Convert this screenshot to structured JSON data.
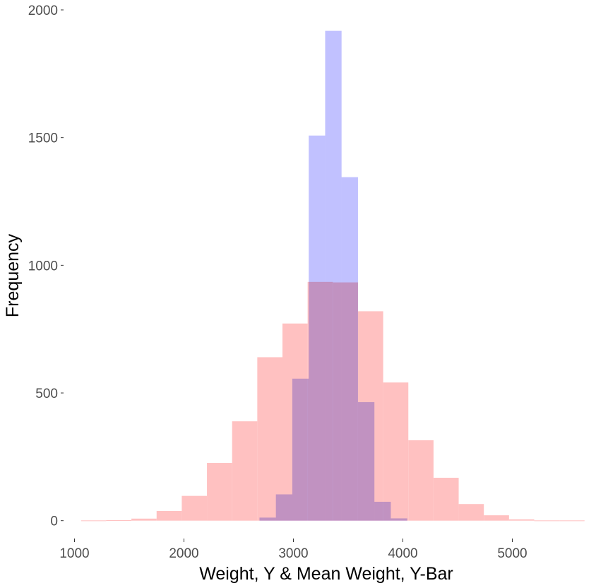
{
  "chart_data": {
    "type": "bar",
    "title": "",
    "xlabel": "Weight, Y & Mean Weight, Y-Bar",
    "ylabel": "Frequency",
    "xlim": [
      900,
      5700
    ],
    "ylim": [
      -70,
      2000
    ],
    "x_ticks": [
      1000,
      2000,
      3000,
      4000,
      5000
    ],
    "x_tick_labels": [
      "1000",
      "2000",
      "3000",
      "4000",
      "5000"
    ],
    "y_ticks": [
      0,
      500,
      1000,
      1500,
      2000
    ],
    "y_tick_labels": [
      "0",
      "500",
      "1000",
      "1500",
      "2000"
    ],
    "grid": false,
    "legend": "none",
    "series": [
      {
        "color": "#ffc1c1",
        "bins": [
          {
            "x0": 1060,
            "x1": 1290,
            "value": 1
          },
          {
            "x0": 1290,
            "x1": 1520,
            "value": 2
          },
          {
            "x0": 1520,
            "x1": 1750,
            "value": 8
          },
          {
            "x0": 1750,
            "x1": 1980,
            "value": 38
          },
          {
            "x0": 1980,
            "x1": 2210,
            "value": 97
          },
          {
            "x0": 2210,
            "x1": 2440,
            "value": 226
          },
          {
            "x0": 2440,
            "x1": 2670,
            "value": 389
          },
          {
            "x0": 2670,
            "x1": 2900,
            "value": 640
          },
          {
            "x0": 2900,
            "x1": 3130,
            "value": 772
          },
          {
            "x0": 3130,
            "x1": 3360,
            "value": 935
          },
          {
            "x0": 3360,
            "x1": 3590,
            "value": 933
          },
          {
            "x0": 3590,
            "x1": 3820,
            "value": 820
          },
          {
            "x0": 3820,
            "x1": 4050,
            "value": 541
          },
          {
            "x0": 4050,
            "x1": 4280,
            "value": 315
          },
          {
            "x0": 4280,
            "x1": 4510,
            "value": 168
          },
          {
            "x0": 4510,
            "x1": 4740,
            "value": 65
          },
          {
            "x0": 4740,
            "x1": 4970,
            "value": 21
          },
          {
            "x0": 4970,
            "x1": 5200,
            "value": 5
          },
          {
            "x0": 5200,
            "x1": 5430,
            "value": 1
          },
          {
            "x0": 5430,
            "x1": 5660,
            "value": 1
          }
        ]
      },
      {
        "color": "#c1c1ff",
        "bins": [
          {
            "x0": 2690,
            "x1": 2840,
            "value": 12
          },
          {
            "x0": 2840,
            "x1": 2990,
            "value": 103
          },
          {
            "x0": 2990,
            "x1": 3140,
            "value": 556
          },
          {
            "x0": 3140,
            "x1": 3290,
            "value": 1508
          },
          {
            "x0": 3290,
            "x1": 3440,
            "value": 1918
          },
          {
            "x0": 3440,
            "x1": 3590,
            "value": 1345
          },
          {
            "x0": 3590,
            "x1": 3740,
            "value": 464
          },
          {
            "x0": 3740,
            "x1": 3890,
            "value": 74
          },
          {
            "x0": 3890,
            "x1": 4040,
            "value": 9
          }
        ]
      }
    ]
  }
}
